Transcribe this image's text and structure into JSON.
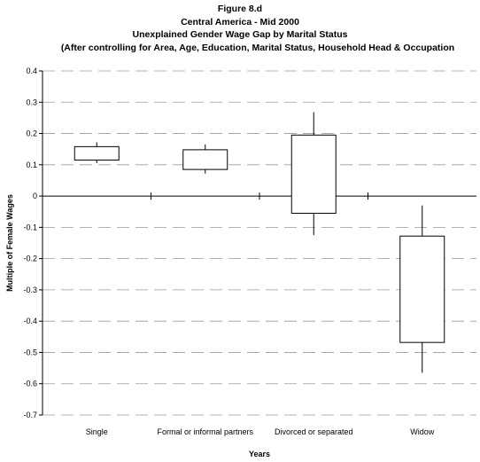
{
  "figure": {
    "title_line1": "Figure 8.d",
    "title_line2": "Central America - Mid 2000",
    "title_line3": "Unexplained Gender Wage Gap by Marital Status",
    "title_line4": "(After controlling for Area, Age, Education, Marital Status, Household Head & Occupation"
  },
  "chart_data": {
    "type": "boxplot",
    "xlabel": "Years",
    "ylabel": "Multiple of Female Wages",
    "ylim": [
      -0.7,
      0.4
    ],
    "yticks": [
      "0.4",
      "0.3",
      "0.2",
      "0.1",
      "0",
      "-0.1",
      "-0.2",
      "-0.3",
      "-0.4",
      "-0.5",
      "-0.6",
      "-0.7"
    ],
    "grid": true,
    "categories": [
      "Single",
      "Formal or informal partners",
      "Divorced or separated",
      "Widow"
    ],
    "boxes": [
      {
        "category": "Single",
        "low": 0.105,
        "q1": 0.115,
        "q3": 0.158,
        "high": 0.172
      },
      {
        "category": "Formal or informal partners",
        "low": 0.072,
        "q1": 0.085,
        "q3": 0.148,
        "high": 0.165
      },
      {
        "category": "Divorced or separated",
        "low": -0.125,
        "q1": -0.055,
        "q3": 0.195,
        "high": 0.268
      },
      {
        "category": "Widow",
        "low": -0.565,
        "q1": -0.468,
        "q3": -0.128,
        "high": -0.03
      }
    ]
  }
}
